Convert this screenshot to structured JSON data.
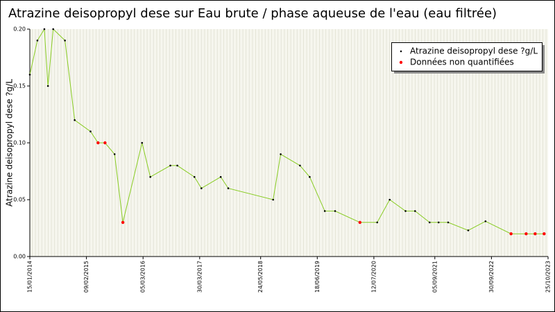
{
  "chart_data": {
    "type": "line",
    "title": "Atrazine deisopropyl dese sur Eau brute / phase aqueuse de l'eau (eau filtrée)",
    "y_label": "Atrazine deisopropyl dese ?g/L",
    "x": [
      "2014-01-15",
      "2014-03-08",
      "2014-04-25",
      "2014-05-20",
      "2014-06-25",
      "2014-09-14",
      "2014-11-20",
      "2015-03-09",
      "2015-04-30",
      "2015-06-17",
      "2015-08-22",
      "2015-10-18",
      "2016-02-27",
      "2016-04-24",
      "2016-09-09",
      "2016-10-27",
      "2017-02-22",
      "2017-04-11",
      "2017-08-22",
      "2017-10-13",
      "2018-08-18",
      "2018-10-09",
      "2019-02-19",
      "2019-04-27",
      "2019-08-09",
      "2019-10-19",
      "2020-04-07",
      "2020-08-04",
      "2020-10-29",
      "2021-02-15",
      "2021-04-22",
      "2021-07-31",
      "2021-10-01",
      "2021-12-06",
      "2022-04-23",
      "2022-08-20",
      "2023-02-12",
      "2023-05-27",
      "2023-07-28",
      "2023-09-28"
    ],
    "series": [
      {
        "name": "Atrazine deisopropyl dese ?g/L",
        "color": "#000000",
        "line_color": "#88cc22",
        "values": [
          0.16,
          0.19,
          0.2,
          0.15,
          0.2,
          0.19,
          0.12,
          0.11,
          0.1,
          0.1,
          0.09,
          0.03,
          0.1,
          0.07,
          0.08,
          0.08,
          0.07,
          0.06,
          0.07,
          0.06,
          0.05,
          0.09,
          0.08,
          0.07,
          0.04,
          0.04,
          0.03,
          0.03,
          0.05,
          0.04,
          0.04,
          0.03,
          0.03,
          0.03,
          0.023,
          0.031,
          0.02,
          0.02,
          0.02,
          0.02
        ]
      }
    ],
    "flag_series": {
      "name": "Données non quantifiées",
      "color": "#ff0000",
      "flags": [
        false,
        false,
        false,
        false,
        false,
        false,
        false,
        false,
        true,
        true,
        false,
        true,
        false,
        false,
        false,
        false,
        false,
        false,
        false,
        false,
        false,
        false,
        false,
        false,
        false,
        false,
        true,
        false,
        false,
        false,
        false,
        false,
        false,
        false,
        false,
        false,
        true,
        true,
        true,
        true
      ]
    },
    "xlim": [
      "2014-01-15",
      "2023-10-25"
    ],
    "xticks": [
      {
        "value": "2014-01-15",
        "label": "15/01/2014"
      },
      {
        "value": "2015-02-09",
        "label": "09/02/2015"
      },
      {
        "value": "2016-03-05",
        "label": "05/03/2016"
      },
      {
        "value": "2017-03-30",
        "label": "30/03/2017"
      },
      {
        "value": "2018-05-24",
        "label": "24/05/2018"
      },
      {
        "value": "2019-06-18",
        "label": "18/06/2019"
      },
      {
        "value": "2020-07-12",
        "label": "12/07/2020"
      },
      {
        "value": "2021-09-05",
        "label": "05/09/2021"
      },
      {
        "value": "2022-09-30",
        "label": "30/09/2022"
      },
      {
        "value": "2023-10-25",
        "label": "25/10/2023"
      }
    ],
    "ylim": [
      0,
      0.2
    ],
    "yticks": [
      {
        "value": 0,
        "label": "0.00"
      },
      0.05,
      {
        "value": 0.1,
        "label": "0.10"
      },
      0.15,
      {
        "value": 0.2,
        "label": "0.20"
      }
    ],
    "legend": "top-right"
  }
}
